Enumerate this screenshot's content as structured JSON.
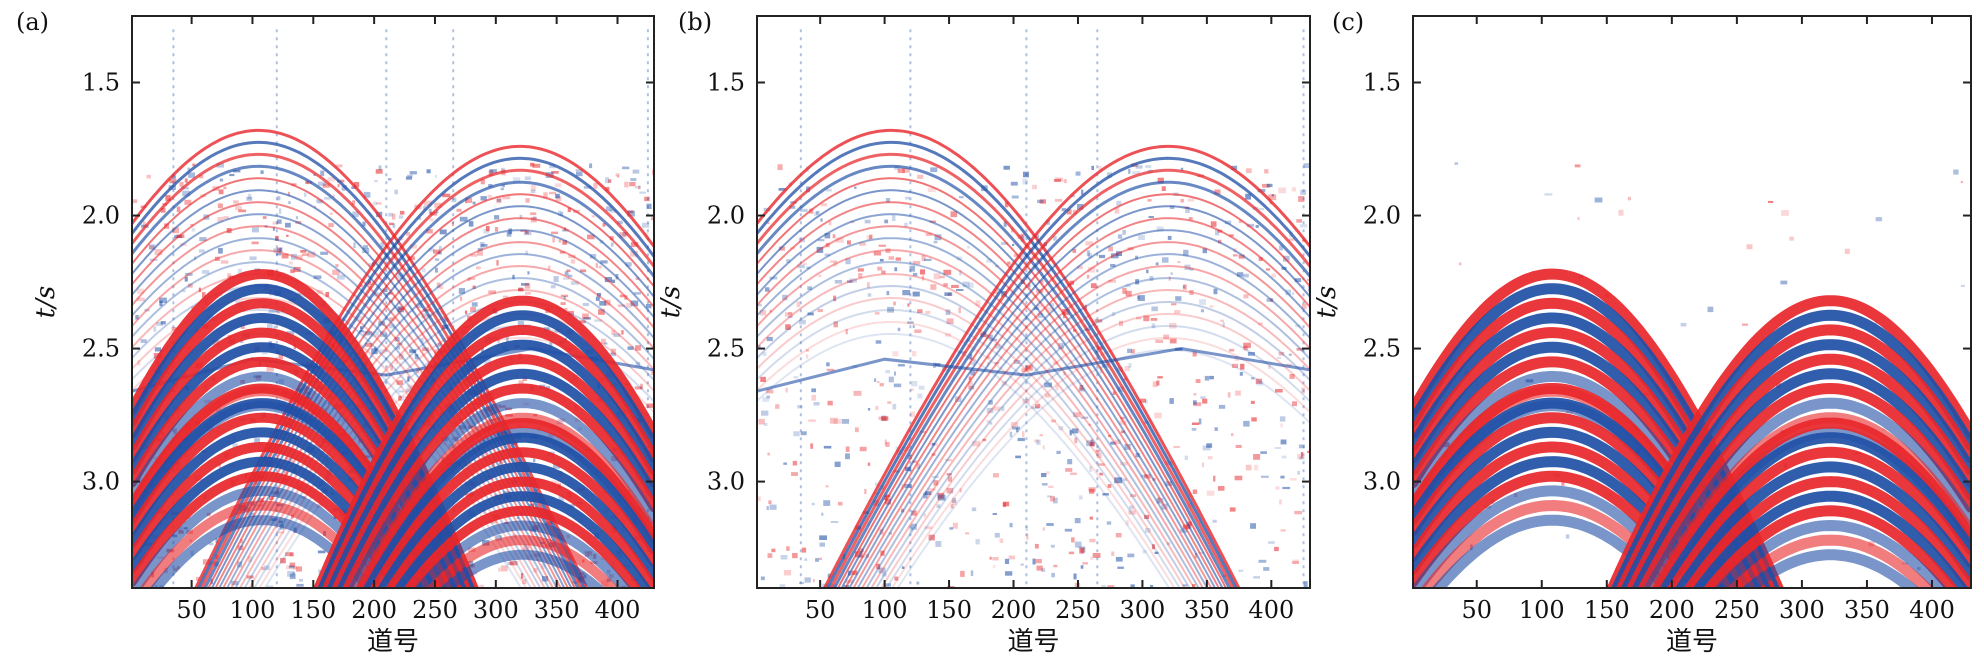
{
  "chart_data": [
    {
      "panel_label": "(a)",
      "type": "heatmap",
      "description_colors": {
        "positive": "#e8262a",
        "negative": "#1f4fa6",
        "zero": "#ffffff"
      },
      "xlabel": "道号",
      "ylabel": "t/s",
      "xlim": [
        1,
        430
      ],
      "ylim": [
        1.25,
        3.4
      ],
      "xticks": [
        "50",
        "100",
        "150",
        "200",
        "250",
        "300",
        "350",
        "400"
      ],
      "yticks": [
        "1.5",
        "2.0",
        "2.5",
        "3.0"
      ],
      "events": {
        "weak_hyperbolas": [
          {
            "apex_trace": 105,
            "apex_time": 1.68
          },
          {
            "apex_trace": 320,
            "apex_time": 1.74
          }
        ],
        "strong_hyperbolas": [
          {
            "apex_trace": 108,
            "apex_time": 2.22
          },
          {
            "apex_trace": 108,
            "apex_time": 2.65
          },
          {
            "apex_trace": 322,
            "apex_time": 2.32
          },
          {
            "apex_trace": 322,
            "apex_time": 2.78
          }
        ],
        "noise_level": "high"
      }
    },
    {
      "panel_label": "(b)",
      "type": "heatmap",
      "description_colors": {
        "positive": "#e8262a",
        "negative": "#1f4fa6",
        "zero": "#ffffff"
      },
      "xlabel": "道号",
      "ylabel": "t/s",
      "xlim": [
        1,
        430
      ],
      "ylim": [
        1.25,
        3.4
      ],
      "xticks": [
        "50",
        "100",
        "150",
        "200",
        "250",
        "300",
        "350",
        "400"
      ],
      "yticks": [
        "1.5",
        "2.0",
        "2.5",
        "3.0"
      ],
      "events": {
        "weak_hyperbolas": [
          {
            "apex_trace": 105,
            "apex_time": 1.68
          },
          {
            "apex_trace": 320,
            "apex_time": 1.74
          }
        ],
        "strong_hyperbolas": [],
        "noise_level": "medium"
      }
    },
    {
      "panel_label": "(c)",
      "type": "heatmap",
      "description_colors": {
        "positive": "#e8262a",
        "negative": "#1f4fa6",
        "zero": "#ffffff"
      },
      "xlabel": "道号",
      "ylabel": "t/s",
      "xlim": [
        1,
        430
      ],
      "ylim": [
        1.25,
        3.4
      ],
      "xticks": [
        "50",
        "100",
        "150",
        "200",
        "250",
        "300",
        "350",
        "400"
      ],
      "yticks": [
        "1.5",
        "2.0",
        "2.5",
        "3.0"
      ],
      "events": {
        "weak_hyperbolas": [],
        "strong_hyperbolas": [
          {
            "apex_trace": 108,
            "apex_time": 2.22
          },
          {
            "apex_trace": 108,
            "apex_time": 2.65
          },
          {
            "apex_trace": 322,
            "apex_time": 2.32
          },
          {
            "apex_trace": 322,
            "apex_time": 2.78
          }
        ],
        "noise_level": "low"
      }
    }
  ]
}
